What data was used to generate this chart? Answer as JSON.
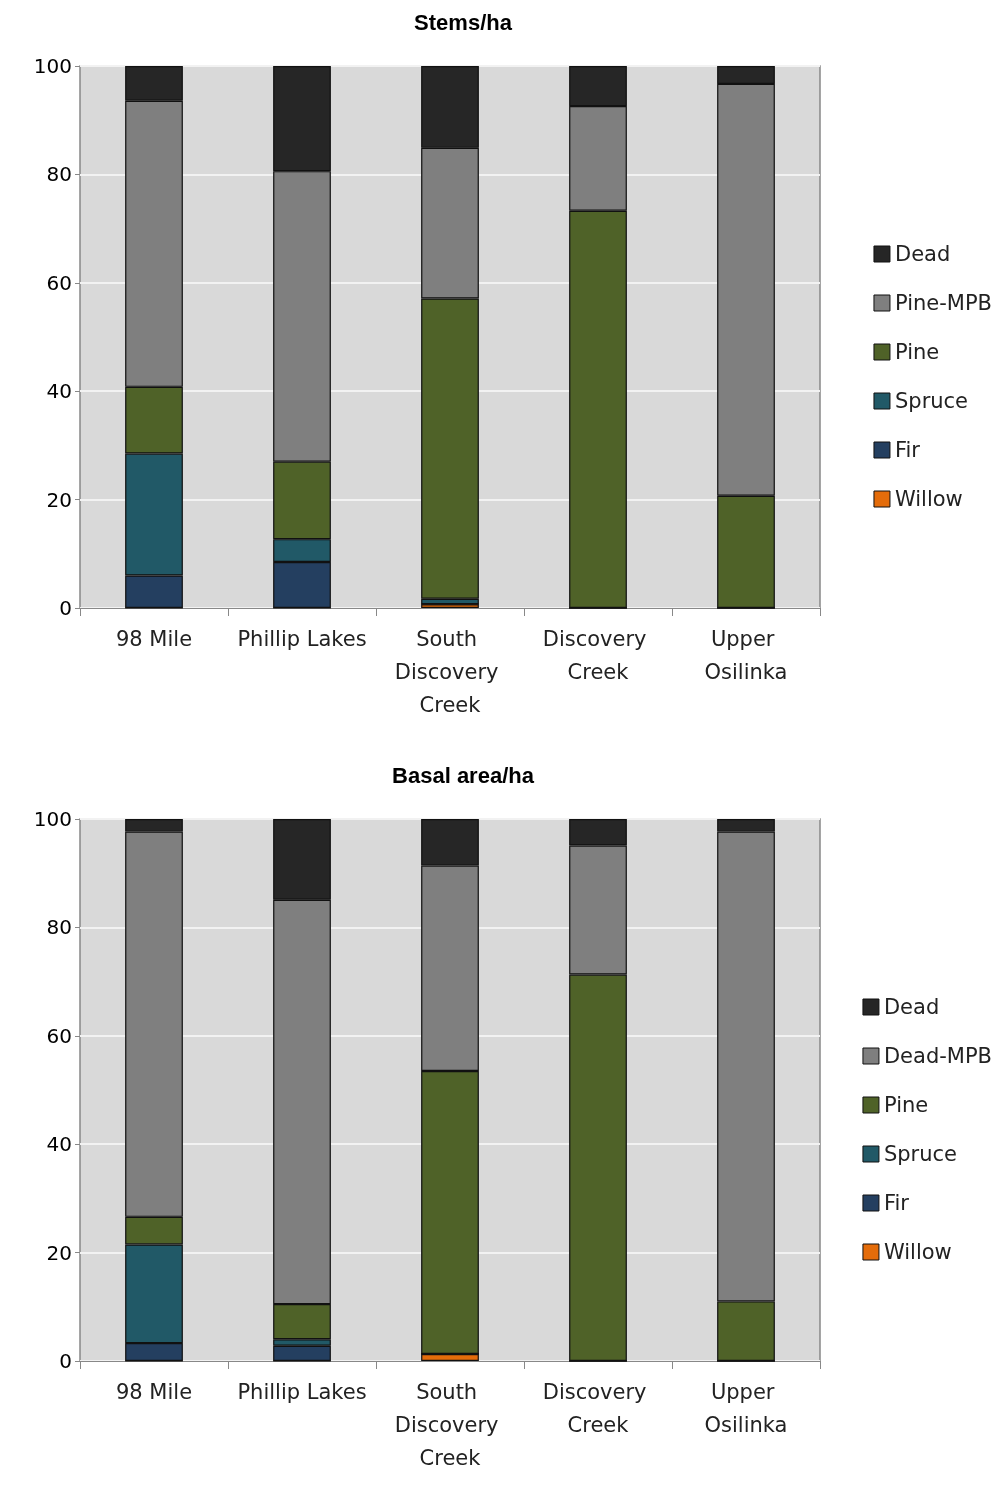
{
  "chart_data": [
    {
      "type": "bar",
      "title": "Stems/ha",
      "categories": [
        "98 Mile",
        "Phillip Lakes",
        "South Discovery Creek",
        "Discovery Creek",
        "Upper Osilinka"
      ],
      "stacked": true,
      "ylim": [
        0,
        100
      ],
      "yticks": [
        0,
        20,
        40,
        60,
        80,
        100
      ],
      "grid": "y",
      "legend": "right",
      "series": [
        {
          "name": "Willow",
          "color": "#e46c0a",
          "values": [
            0,
            0,
            0.7,
            0,
            0
          ]
        },
        {
          "name": "Fir",
          "color": "#243f60",
          "values": [
            6,
            8.5,
            0,
            0,
            0
          ]
        },
        {
          "name": "Spruce",
          "color": "#215967",
          "values": [
            22.5,
            4.2,
            1,
            0,
            0
          ]
        },
        {
          "name": "Pine",
          "color": "#4f6228",
          "values": [
            12.3,
            14.3,
            55.4,
            73.3,
            20.7
          ]
        },
        {
          "name": "Pine-MPB",
          "color": "#7f7f7f",
          "values": [
            52.8,
            53.6,
            27.8,
            19.3,
            76
          ]
        },
        {
          "name": "Dead",
          "color": "#262626",
          "values": [
            6.4,
            19.4,
            15.1,
            7.4,
            3.3
          ]
        }
      ]
    },
    {
      "type": "bar",
      "title": "Basal area/ha",
      "categories": [
        "98 Mile",
        "Phillip Lakes",
        "South Discovery Creek",
        "Discovery Creek",
        "Upper Osilinka"
      ],
      "stacked": true,
      "ylim": [
        0,
        100
      ],
      "yticks": [
        0,
        20,
        40,
        60,
        80,
        100
      ],
      "grid": "y",
      "legend": "right",
      "series": [
        {
          "name": "Willow",
          "color": "#e46c0a",
          "values": [
            0,
            0,
            1.3,
            0,
            0
          ]
        },
        {
          "name": "Fir",
          "color": "#243f60",
          "values": [
            3.3,
            2.8,
            0,
            0,
            0
          ]
        },
        {
          "name": "Spruce",
          "color": "#215967",
          "values": [
            18.2,
            1.2,
            0,
            0,
            0
          ]
        },
        {
          "name": "Pine",
          "color": "#4f6228",
          "values": [
            5.1,
            6.5,
            52.2,
            71.3,
            11
          ]
        },
        {
          "name": "Dead-MPB",
          "color": "#7f7f7f",
          "values": [
            71.1,
            74.6,
            37.9,
            23.8,
            86.7
          ]
        },
        {
          "name": "Dead",
          "color": "#262626",
          "values": [
            2.3,
            14.9,
            8.6,
            4.9,
            2.3
          ]
        }
      ]
    }
  ]
}
